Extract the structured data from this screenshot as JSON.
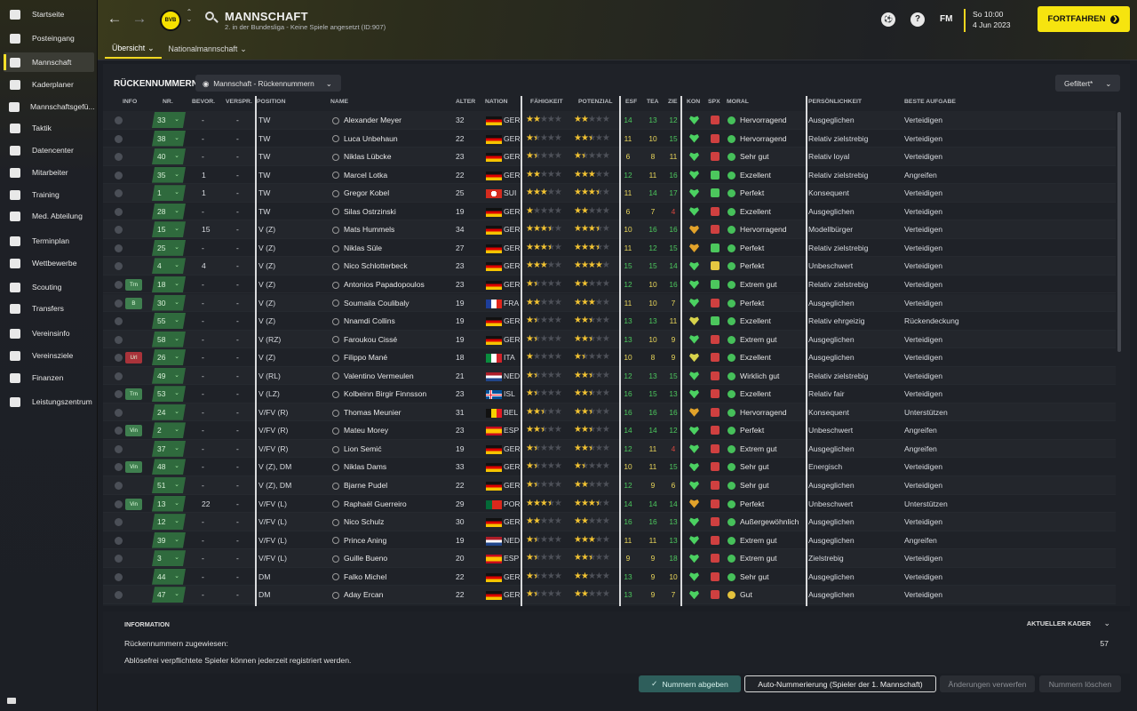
{
  "sidebar": {
    "items": [
      {
        "label": "Startseite",
        "active": false
      },
      {
        "label": "Posteingang",
        "active": false
      },
      {
        "label": "Mannschaft",
        "active": true
      },
      {
        "label": "Kaderplaner",
        "active": false
      },
      {
        "label": "Mannschaftsgefü...",
        "active": false
      },
      {
        "label": "Taktik",
        "active": false
      },
      {
        "label": "Datencenter",
        "active": false
      },
      {
        "label": "Mitarbeiter",
        "active": false
      },
      {
        "label": "Training",
        "active": false
      },
      {
        "label": "Med. Abteilung",
        "active": false
      },
      {
        "label": "Terminplan",
        "active": false
      },
      {
        "label": "Wettbewerbe",
        "active": false
      },
      {
        "label": "Scouting",
        "active": false
      },
      {
        "label": "Transfers",
        "active": false
      },
      {
        "label": "Vereinsinfo",
        "active": false
      },
      {
        "label": "Vereinsziele",
        "active": false
      },
      {
        "label": "Finanzen",
        "active": false
      },
      {
        "label": "Leistungszentrum",
        "active": false
      }
    ]
  },
  "header": {
    "title": "MANNSCHAFT",
    "subtitle": "2. in der Bundesliga - Keine Spiele angesetzt (ID:907)",
    "crest_label": "BVB",
    "tabs": [
      "Übersicht",
      "Nationalmannschaft"
    ]
  },
  "topright": {
    "fm_label": "FM",
    "help_glyph": "?",
    "time": "So 10:00",
    "date": "4 Jun 2023",
    "continue_label": "FORTFAHREN"
  },
  "panel": {
    "section_title": "RÜCKENNUMMERN",
    "view_select": "Mannschaft - Rückennummern",
    "filter_label": "Gefiltert*"
  },
  "columns": {
    "info": "INFO",
    "nr": "NR.",
    "bevor": "BEVOR.",
    "verspr": "VERSPR.",
    "position": "POSITION",
    "name": "NAME",
    "alter": "ALTER",
    "nation": "NATION",
    "faehigkeit": "FÄHIGKEIT",
    "potenzial": "POTENZIAL",
    "esf": "ESF",
    "tea": "TEA",
    "zie": "ZIE",
    "kon": "KON",
    "spx": "SPX",
    "moral": "MORAL",
    "pers": "PERSÖNLICHKEIT",
    "aufgabe": "BESTE AUFGABE"
  },
  "players": [
    {
      "nr": "33",
      "bevor": "-",
      "verspr": "-",
      "pos": "TW",
      "name": "Alexander Meyer",
      "age": "32",
      "nation": "GER",
      "ca": 2,
      "pa": 2,
      "esf": "14",
      "tea": "13",
      "zie": "12",
      "kon": "g",
      "spx": "red",
      "moral": "Hervorragend",
      "pers": "Ausgeglichen",
      "task": "Verteidigen",
      "status": ""
    },
    {
      "nr": "38",
      "bevor": "-",
      "verspr": "-",
      "pos": "TW",
      "name": "Luca Unbehaun",
      "age": "22",
      "nation": "GER",
      "ca": 1.5,
      "pa": 2.5,
      "esf": "11",
      "tea": "10",
      "zie": "15",
      "kon": "g",
      "spx": "red",
      "moral": "Hervorragend",
      "pers": "Relativ zielstrebig",
      "task": "Verteidigen",
      "status": ""
    },
    {
      "nr": "40",
      "bevor": "-",
      "verspr": "-",
      "pos": "TW",
      "name": "Niklas Lübcke",
      "age": "23",
      "nation": "GER",
      "ca": 1.5,
      "pa": 1.5,
      "esf": "6",
      "tea": "8",
      "zie": "11",
      "kon": "g",
      "spx": "red",
      "moral": "Sehr gut",
      "pers": "Relativ loyal",
      "task": "Verteidigen",
      "status": ""
    },
    {
      "nr": "35",
      "bevor": "1",
      "verspr": "-",
      "pos": "TW",
      "name": "Marcel Lotka",
      "age": "22",
      "nation": "GER",
      "ca": 2,
      "pa": 3,
      "esf": "12",
      "tea": "11",
      "zie": "16",
      "kon": "g",
      "spx": "grn",
      "moral": "Exzellent",
      "pers": "Relativ zielstrebig",
      "task": "Angreifen",
      "status": ""
    },
    {
      "nr": "1",
      "bevor": "1",
      "verspr": "-",
      "pos": "TW",
      "name": "Gregor Kobel",
      "age": "25",
      "nation": "SUI",
      "ca": 3,
      "pa": 3.5,
      "esf": "11",
      "tea": "14",
      "zie": "17",
      "kon": "g",
      "spx": "grn",
      "moral": "Perfekt",
      "pers": "Konsequent",
      "task": "Verteidigen",
      "status": ""
    },
    {
      "nr": "28",
      "bevor": "-",
      "verspr": "-",
      "pos": "TW",
      "name": "Silas Ostrzinski",
      "age": "19",
      "nation": "GER",
      "ca": 1,
      "pa": 2,
      "esf": "6",
      "tea": "7",
      "zie": "4",
      "kon": "g",
      "spx": "red",
      "moral": "Exzellent",
      "pers": "Ausgeglichen",
      "task": "Verteidigen",
      "status": ""
    },
    {
      "nr": "15",
      "bevor": "15",
      "verspr": "-",
      "pos": "V (Z)",
      "name": "Mats Hummels",
      "age": "34",
      "nation": "GER",
      "ca": 3.5,
      "pa": 3.5,
      "esf": "10",
      "tea": "16",
      "zie": "16",
      "kon": "o",
      "spx": "red",
      "moral": "Hervorragend",
      "pers": "Modellbürger",
      "task": "Verteidigen",
      "status": ""
    },
    {
      "nr": "25",
      "bevor": "-",
      "verspr": "-",
      "pos": "V (Z)",
      "name": "Niklas Süle",
      "age": "27",
      "nation": "GER",
      "ca": 3.5,
      "pa": 3.5,
      "esf": "11",
      "tea": "12",
      "zie": "15",
      "kon": "o",
      "spx": "grn",
      "moral": "Perfekt",
      "pers": "Relativ zielstrebig",
      "task": "Verteidigen",
      "status": ""
    },
    {
      "nr": "4",
      "bevor": "4",
      "verspr": "-",
      "pos": "V (Z)",
      "name": "Nico Schlotterbeck",
      "age": "23",
      "nation": "GER",
      "ca": 3,
      "pa": 4,
      "esf": "15",
      "tea": "15",
      "zie": "14",
      "kon": "g",
      "spx": "yel",
      "moral": "Perfekt",
      "pers": "Unbeschwert",
      "task": "Verteidigen",
      "status": ""
    },
    {
      "nr": "18",
      "bevor": "-",
      "verspr": "-",
      "pos": "V (Z)",
      "name": "Antonios Papadopoulos",
      "age": "23",
      "nation": "GER",
      "ca": 1.5,
      "pa": 2,
      "esf": "12",
      "tea": "10",
      "zie": "16",
      "kon": "g",
      "spx": "grn",
      "moral": "Extrem gut",
      "pers": "Relativ zielstrebig",
      "task": "Verteidigen",
      "status": "Trn"
    },
    {
      "nr": "30",
      "bevor": "-",
      "verspr": "-",
      "pos": "V (Z)",
      "name": "Soumaila Coulibaly",
      "age": "19",
      "nation": "FRA",
      "ca": 2,
      "pa": 3,
      "esf": "11",
      "tea": "10",
      "zie": "7",
      "kon": "g",
      "spx": "red",
      "moral": "Perfekt",
      "pers": "Ausgeglichen",
      "task": "Verteidigen",
      "status": "B"
    },
    {
      "nr": "55",
      "bevor": "-",
      "verspr": "-",
      "pos": "V (Z)",
      "name": "Nnamdi Collins",
      "age": "19",
      "nation": "GER",
      "ca": 1.5,
      "pa": 2.5,
      "esf": "13",
      "tea": "13",
      "zie": "11",
      "kon": "y",
      "spx": "grn",
      "moral": "Exzellent",
      "pers": "Relativ ehrgeizig",
      "task": "Rückendeckung",
      "status": ""
    },
    {
      "nr": "58",
      "bevor": "-",
      "verspr": "-",
      "pos": "V (RZ)",
      "name": "Faroukou Cissé",
      "age": "19",
      "nation": "GER",
      "ca": 1.5,
      "pa": 2.5,
      "esf": "13",
      "tea": "10",
      "zie": "9",
      "kon": "g",
      "spx": "red",
      "moral": "Extrem gut",
      "pers": "Ausgeglichen",
      "task": "Verteidigen",
      "status": ""
    },
    {
      "nr": "26",
      "bevor": "-",
      "verspr": "-",
      "pos": "V (Z)",
      "name": "Filippo Mané",
      "age": "18",
      "nation": "ITA",
      "ca": 1,
      "pa": 1.5,
      "esf": "10",
      "tea": "8",
      "zie": "9",
      "kon": "y",
      "spx": "red",
      "moral": "Exzellent",
      "pers": "Ausgeglichen",
      "task": "Verteidigen",
      "status": "Url"
    },
    {
      "nr": "49",
      "bevor": "-",
      "verspr": "-",
      "pos": "V (RL)",
      "name": "Valentino Vermeulen",
      "age": "21",
      "nation": "NED",
      "ca": 1.5,
      "pa": 2.5,
      "esf": "12",
      "tea": "13",
      "zie": "15",
      "kon": "g",
      "spx": "red",
      "moral": "Wirklich gut",
      "pers": "Relativ zielstrebig",
      "task": "Verteidigen",
      "status": ""
    },
    {
      "nr": "53",
      "bevor": "-",
      "verspr": "-",
      "pos": "V (LZ)",
      "name": "Kolbeinn Birgir Finnsson",
      "age": "23",
      "nation": "ISL",
      "ca": 1.5,
      "pa": 2.5,
      "esf": "16",
      "tea": "15",
      "zie": "13",
      "kon": "g",
      "spx": "red",
      "moral": "Exzellent",
      "pers": "Relativ fair",
      "task": "Verteidigen",
      "status": "Trn"
    },
    {
      "nr": "24",
      "bevor": "-",
      "verspr": "-",
      "pos": "V/FV (R)",
      "name": "Thomas Meunier",
      "age": "31",
      "nation": "BEL",
      "ca": 2.5,
      "pa": 2.5,
      "esf": "16",
      "tea": "16",
      "zie": "16",
      "kon": "o",
      "spx": "red",
      "moral": "Hervorragend",
      "pers": "Konsequent",
      "task": "Unterstützen",
      "status": ""
    },
    {
      "nr": "2",
      "bevor": "-",
      "verspr": "-",
      "pos": "V/FV (R)",
      "name": "Mateu Morey",
      "age": "23",
      "nation": "ESP",
      "ca": 2.5,
      "pa": 2.5,
      "esf": "14",
      "tea": "14",
      "zie": "12",
      "kon": "g",
      "spx": "red",
      "moral": "Perfekt",
      "pers": "Unbeschwert",
      "task": "Angreifen",
      "status": "Vin"
    },
    {
      "nr": "37",
      "bevor": "-",
      "verspr": "-",
      "pos": "V/FV (R)",
      "name": "Lion Semić",
      "age": "19",
      "nation": "GER",
      "ca": 1.5,
      "pa": 2.5,
      "esf": "12",
      "tea": "11",
      "zie": "4",
      "kon": "g",
      "spx": "red",
      "moral": "Extrem gut",
      "pers": "Ausgeglichen",
      "task": "Angreifen",
      "status": ""
    },
    {
      "nr": "48",
      "bevor": "-",
      "verspr": "-",
      "pos": "V (Z), DM",
      "name": "Niklas Dams",
      "age": "33",
      "nation": "GER",
      "ca": 1.5,
      "pa": 1.5,
      "esf": "10",
      "tea": "11",
      "zie": "15",
      "kon": "g",
      "spx": "red",
      "moral": "Sehr gut",
      "pers": "Energisch",
      "task": "Verteidigen",
      "status": "Vin"
    },
    {
      "nr": "51",
      "bevor": "-",
      "verspr": "-",
      "pos": "V (Z), DM",
      "name": "Bjarne Pudel",
      "age": "22",
      "nation": "GER",
      "ca": 1.5,
      "pa": 2,
      "esf": "12",
      "tea": "9",
      "zie": "6",
      "kon": "g",
      "spx": "red",
      "moral": "Sehr gut",
      "pers": "Ausgeglichen",
      "task": "Verteidigen",
      "status": ""
    },
    {
      "nr": "13",
      "bevor": "22",
      "verspr": "-",
      "pos": "V/FV (L)",
      "name": "Raphaël Guerreiro",
      "age": "29",
      "nation": "POR",
      "ca": 3.5,
      "pa": 3.5,
      "esf": "14",
      "tea": "14",
      "zie": "14",
      "kon": "o",
      "spx": "red",
      "moral": "Perfekt",
      "pers": "Unbeschwert",
      "task": "Unterstützen",
      "status": "Vin"
    },
    {
      "nr": "12",
      "bevor": "-",
      "verspr": "-",
      "pos": "V/FV (L)",
      "name": "Nico Schulz",
      "age": "30",
      "nation": "GER",
      "ca": 2,
      "pa": 2,
      "esf": "16",
      "tea": "16",
      "zie": "13",
      "kon": "g",
      "spx": "red",
      "moral": "Außergewöhnlich",
      "pers": "Ausgeglichen",
      "task": "Verteidigen",
      "status": ""
    },
    {
      "nr": "39",
      "bevor": "-",
      "verspr": "-",
      "pos": "V/FV (L)",
      "name": "Prince Aning",
      "age": "19",
      "nation": "NED",
      "ca": 1.5,
      "pa": 3,
      "esf": "11",
      "tea": "11",
      "zie": "13",
      "kon": "g",
      "spx": "red",
      "moral": "Extrem gut",
      "pers": "Ausgeglichen",
      "task": "Angreifen",
      "status": ""
    },
    {
      "nr": "3",
      "bevor": "-",
      "verspr": "-",
      "pos": "V/FV (L)",
      "name": "Guille Bueno",
      "age": "20",
      "nation": "ESP",
      "ca": 1.5,
      "pa": 2.5,
      "esf": "9",
      "tea": "9",
      "zie": "18",
      "kon": "g",
      "spx": "red",
      "moral": "Extrem gut",
      "pers": "Zielstrebig",
      "task": "Verteidigen",
      "status": ""
    },
    {
      "nr": "44",
      "bevor": "-",
      "verspr": "-",
      "pos": "DM",
      "name": "Falko Michel",
      "age": "22",
      "nation": "GER",
      "ca": 1.5,
      "pa": 2,
      "esf": "13",
      "tea": "9",
      "zie": "10",
      "kon": "g",
      "spx": "red",
      "moral": "Sehr gut",
      "pers": "Ausgeglichen",
      "task": "Verteidigen",
      "status": ""
    },
    {
      "nr": "47",
      "bevor": "-",
      "verspr": "-",
      "pos": "DM",
      "name": "Aday Ercan",
      "age": "22",
      "nation": "GER",
      "ca": 1.5,
      "pa": 2,
      "esf": "13",
      "tea": "9",
      "zie": "7",
      "kon": "g",
      "spx": "red",
      "moral": "Gut",
      "pers": "Ausgeglichen",
      "task": "Verteidigen",
      "status": ""
    }
  ],
  "info": {
    "title": "INFORMATION",
    "kader_label": "AKTUELLER KADER",
    "assigned_label": "Rückennummern zugewiesen:",
    "assigned_value": "57",
    "note": "Ablösefrei verpflichtete Spieler können jederzeit registriert werden."
  },
  "buttons": {
    "assign": "Nummern abgeben",
    "auto": "Auto-Nummerierung (Spieler der 1. Mannschaft)",
    "discard": "Änderungen verwerfen",
    "clear": "Nummern löschen"
  },
  "colors": {
    "accent": "#f6e40f",
    "number_bg": "#2f6a3d",
    "panel_bg": "#1f2228"
  }
}
